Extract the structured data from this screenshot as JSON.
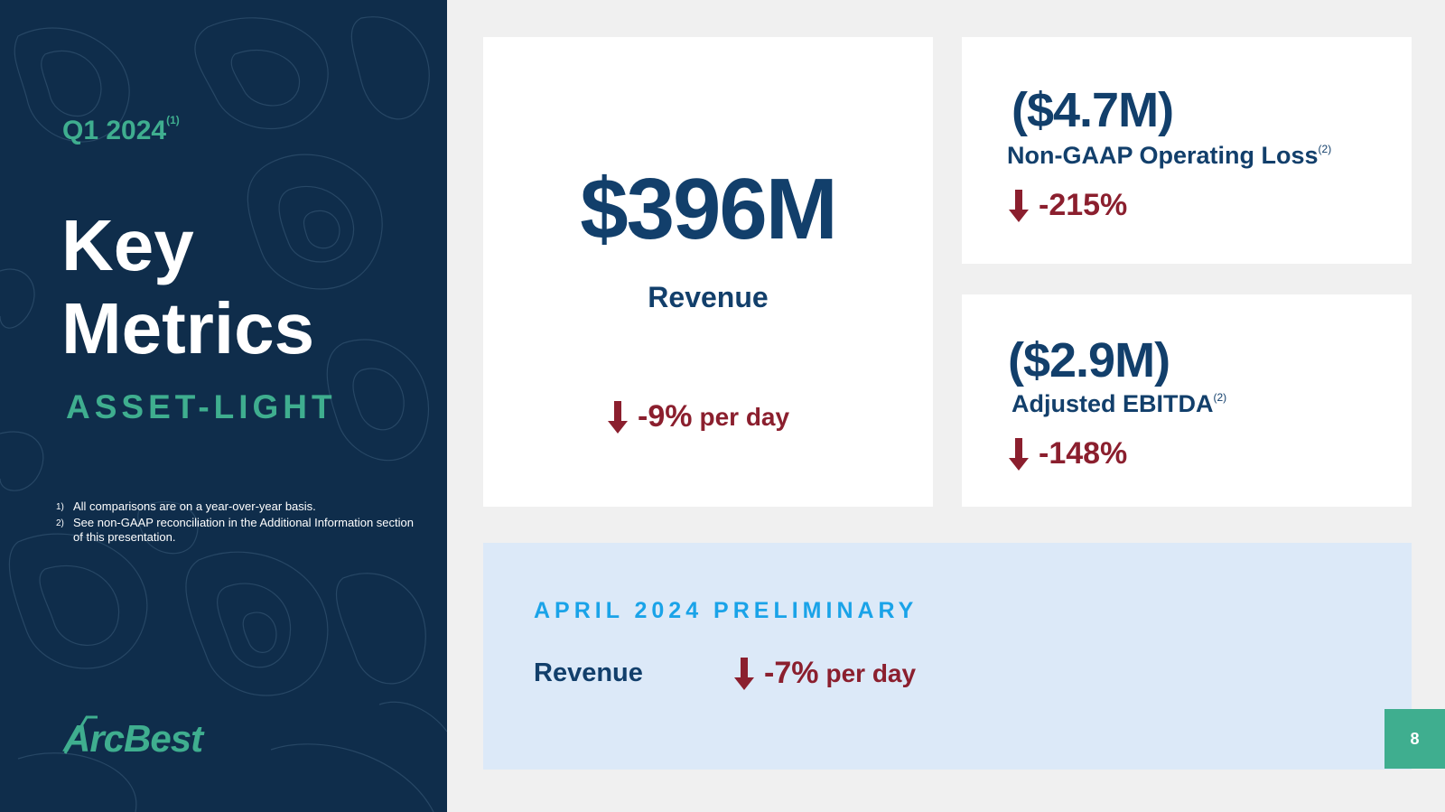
{
  "sidebar": {
    "period": "Q1 2024",
    "period_note": "(1)",
    "headline_line1": "Key",
    "headline_line2": "Metrics",
    "segment": "ASSET-LIGHT",
    "footnotes": [
      {
        "num": "1)",
        "text": "All comparisons are on a year-over-year basis."
      },
      {
        "num": "2)",
        "text": "See non-GAAP reconciliation in the Additional Information section of this presentation."
      }
    ],
    "logo_text": "ArcBest"
  },
  "revenue_card": {
    "value": "$396M",
    "label": "Revenue",
    "change": "-9%",
    "change_unit": "per day",
    "direction": "down"
  },
  "oploss_card": {
    "value": "($4.7M)",
    "label": "Non-GAAP Operating Loss",
    "label_note": "(2)",
    "change": "-215%",
    "direction": "down"
  },
  "ebitda_card": {
    "value": "($2.9M)",
    "label": "Adjusted EBITDA",
    "label_note": "(2)",
    "change": "-148%",
    "direction": "down"
  },
  "preliminary": {
    "title": "APRIL 2024 PRELIMINARY",
    "label": "Revenue",
    "change": "-7%",
    "change_unit": "per day",
    "direction": "down"
  },
  "page_number": "8",
  "colors": {
    "navy": "#0f2d4b",
    "title_blue": "#123f6b",
    "green": "#3fae8f",
    "red": "#8b1f2e",
    "light_blue_panel": "#dce9f8",
    "cyan_title": "#1aa3e8"
  }
}
